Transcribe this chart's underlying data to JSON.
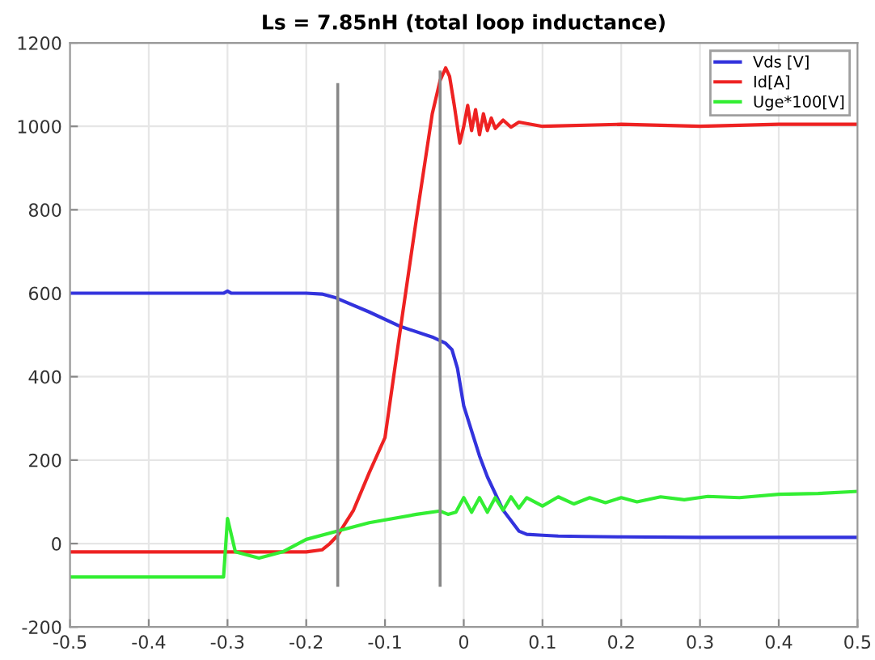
{
  "chart_data": {
    "type": "line",
    "title": "Ls = 7.85nH (total loop inductance)",
    "xlim": [
      -0.5,
      0.5
    ],
    "xticks": [
      -0.5,
      -0.4,
      -0.3,
      -0.2,
      -0.1,
      0,
      0.1,
      0.2,
      0.3,
      0.4,
      0.5
    ],
    "ylim": [
      -200,
      1200
    ],
    "yticks": [
      -200,
      0,
      200,
      400,
      600,
      800,
      1000,
      1200
    ],
    "grid": true,
    "legend": "top right",
    "line_style": "solid",
    "marker": "none",
    "series": [
      {
        "name": "Vds [V]",
        "color": "#3333dd",
        "x": [
          -0.5,
          -0.305,
          -0.3,
          -0.295,
          -0.2,
          -0.18,
          -0.164,
          -0.12,
          -0.08,
          -0.04,
          -0.023,
          -0.015,
          -0.008,
          0,
          0.01,
          0.02,
          0.03,
          0.05,
          0.07,
          0.08,
          0.1,
          0.12,
          0.15,
          0.2,
          0.3,
          0.4,
          0.5
        ],
        "values": [
          600,
          600,
          605,
          600,
          600,
          598,
          590,
          555,
          520,
          495,
          480,
          465,
          420,
          330,
          270,
          210,
          160,
          80,
          30,
          22,
          20,
          18,
          17,
          16,
          15,
          15,
          15
        ]
      },
      {
        "name": "Id[A]",
        "color": "#ee2222",
        "x": [
          -0.5,
          -0.2,
          -0.18,
          -0.17,
          -0.16,
          -0.14,
          -0.12,
          -0.1,
          -0.08,
          -0.06,
          -0.04,
          -0.03,
          -0.023,
          -0.018,
          -0.012,
          -0.005,
          0,
          0.005,
          0.01,
          0.015,
          0.02,
          0.025,
          0.03,
          0.035,
          0.04,
          0.05,
          0.06,
          0.07,
          0.1,
          0.2,
          0.3,
          0.4,
          0.5
        ],
        "values": [
          -20,
          -20,
          -15,
          0,
          20,
          80,
          170,
          254,
          520,
          780,
          1030,
          1110,
          1140,
          1120,
          1050,
          960,
          1000,
          1050,
          990,
          1040,
          980,
          1030,
          990,
          1020,
          995,
          1015,
          998,
          1010,
          1000,
          1005,
          1000,
          1005,
          1005
        ]
      },
      {
        "name": "Uge*100[V]",
        "color": "#33ee33",
        "x": [
          -0.5,
          -0.305,
          -0.3,
          -0.29,
          -0.26,
          -0.23,
          -0.2,
          -0.16,
          -0.12,
          -0.06,
          -0.03,
          -0.02,
          -0.01,
          0,
          0.01,
          0.02,
          0.03,
          0.04,
          0.05,
          0.06,
          0.07,
          0.08,
          0.1,
          0.12,
          0.14,
          0.16,
          0.18,
          0.2,
          0.22,
          0.25,
          0.28,
          0.31,
          0.35,
          0.4,
          0.45,
          0.5
        ],
        "values": [
          -80,
          -80,
          60,
          -20,
          -35,
          -20,
          10,
          30,
          50,
          70,
          78,
          70,
          75,
          110,
          75,
          110,
          75,
          110,
          80,
          112,
          85,
          110,
          90,
          112,
          95,
          110,
          98,
          110,
          100,
          112,
          105,
          113,
          110,
          118,
          120,
          125
        ]
      },
      {
        "color": "#888888",
        "x": [
          -0.16,
          -0.16
        ],
        "values": [
          -100,
          1100
        ]
      },
      {
        "color": "#888888",
        "x": [
          -0.03,
          -0.03
        ],
        "values": [
          -100,
          1130
        ]
      }
    ]
  }
}
